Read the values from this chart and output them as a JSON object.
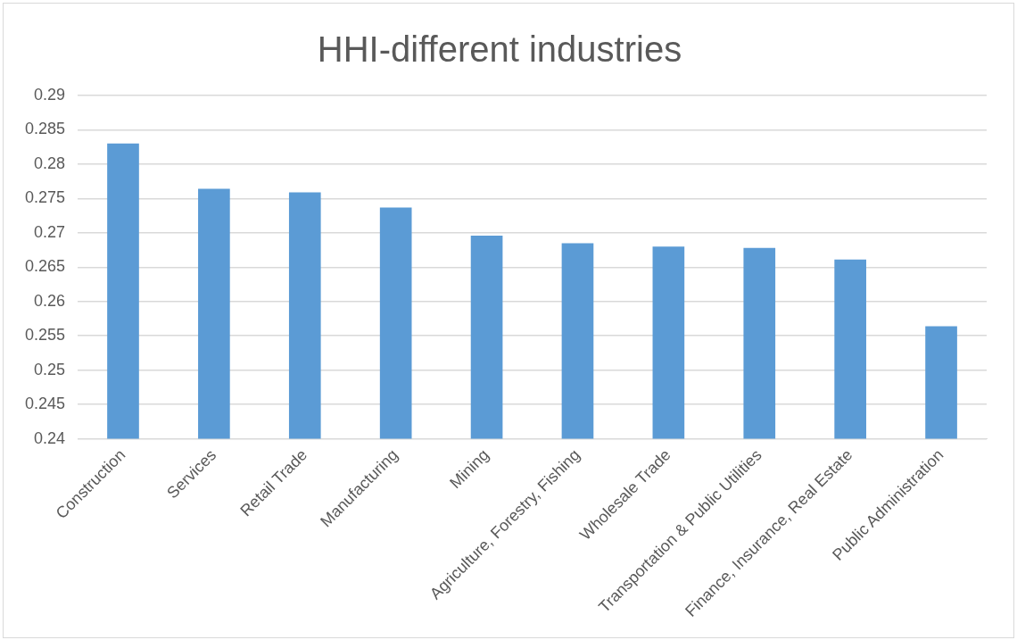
{
  "chart_data": {
    "type": "bar",
    "title": "HHI-different industries",
    "categories": [
      "Construction",
      "Services",
      "Retail Trade",
      "Manufacturing",
      "Mining",
      "Agriculture, Forestry, Fishing",
      "Wholesale Trade",
      "Transportation & Public Utilities",
      "Finance, Insurance, Real Estate",
      "Public Administration"
    ],
    "values": [
      0.283,
      0.2764,
      0.2759,
      0.2737,
      0.2696,
      0.2685,
      0.268,
      0.2678,
      0.2661,
      0.2564
    ],
    "color": "#5b9bd5",
    "ylim": [
      0.24,
      0.29
    ],
    "yticks": [
      0.24,
      0.245,
      0.25,
      0.255,
      0.26,
      0.265,
      0.27,
      0.275,
      0.28,
      0.285,
      0.29
    ],
    "grid": "y",
    "legend": false
  }
}
